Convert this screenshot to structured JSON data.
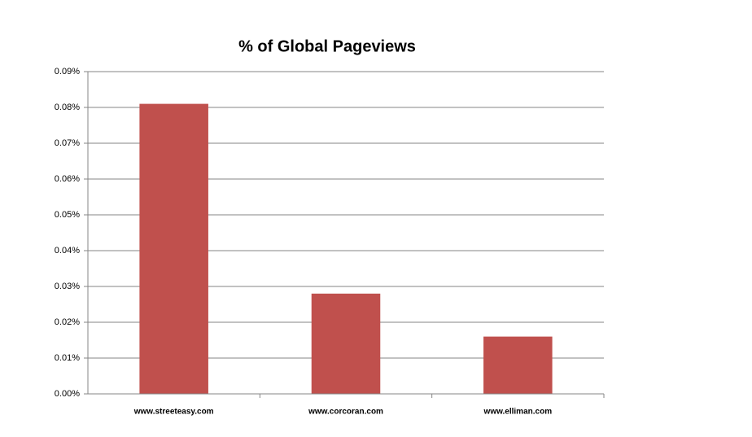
{
  "chart_data": {
    "type": "bar",
    "title": "% of Global Pageviews",
    "categories": [
      "www.streeteasy.com",
      "www.corcoran.com",
      "www.elliman.com"
    ],
    "values": [
      0.081,
      0.028,
      0.016
    ],
    "color": "#c0504d",
    "ylim": [
      0,
      0.09
    ],
    "yticks": [
      {
        "value": 0,
        "label": "0.00%"
      },
      {
        "value": 0.01,
        "label": "0.01%"
      },
      {
        "value": 0.02,
        "label": "0.02%"
      },
      {
        "value": 0.03,
        "label": "0.03%"
      },
      {
        "value": 0.04,
        "label": "0.04%"
      },
      {
        "value": 0.05,
        "label": "0.05%"
      },
      {
        "value": 0.06,
        "label": "0.06%"
      },
      {
        "value": 0.07,
        "label": "0.07%"
      },
      {
        "value": 0.08,
        "label": "0.08%"
      },
      {
        "value": 0.09,
        "label": "0.09%"
      }
    ],
    "grid": true
  }
}
